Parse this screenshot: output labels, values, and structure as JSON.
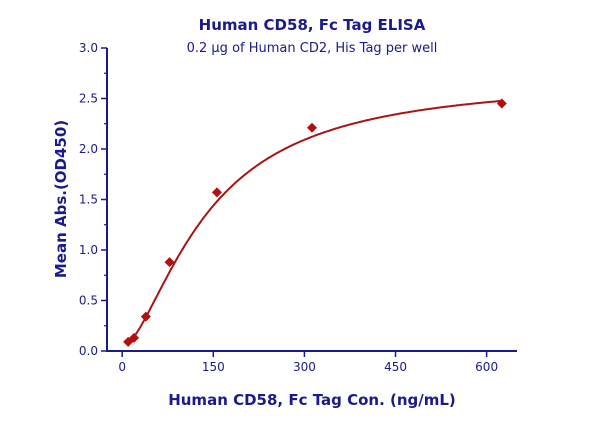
{
  "chart_data": {
    "type": "scatter",
    "title": "Human CD58, Fc Tag ELISA",
    "subtitle": "0.2 µg of Human CD2, His Tag per well",
    "xlabel": "Human CD58, Fc Tag Con. (ng/mL)",
    "ylabel": "Mean Abs.(OD450)",
    "xlim": [
      -25,
      650
    ],
    "ylim": [
      0,
      3.0
    ],
    "xticks": [
      0,
      150,
      300,
      450,
      600
    ],
    "yticks": [
      "0.0",
      "0.5",
      "1.0",
      "1.5",
      "2.0",
      "2.5",
      "3.0"
    ],
    "grid": false,
    "fit": "4-parameter logistic curve",
    "series": [
      {
        "x": [
          9.77,
          19.5,
          39,
          78,
          156,
          312.5,
          625
        ],
        "y": [
          0.09,
          0.13,
          0.34,
          0.88,
          1.57,
          2.21,
          2.45
        ],
        "marker": "diamond"
      }
    ],
    "colors": {
      "points": "#b30f0f",
      "curve": "#a81414",
      "axis": "#1a1a8c",
      "text": "#1a1a8c"
    }
  }
}
